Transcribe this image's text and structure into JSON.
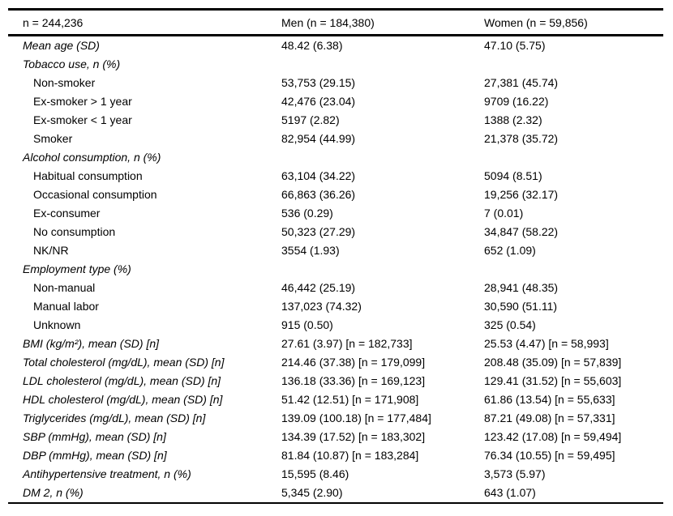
{
  "page": {
    "background_color": "#ffffff",
    "text_color": "#000000",
    "rule_color": "#000000"
  },
  "table": {
    "columns": [
      "n = 244,236",
      "Men (n = 184,380)",
      "Women (n = 59,856)"
    ],
    "rows": [
      {
        "label": "Mean age (SD)",
        "variant": "category",
        "men": "48.42 (6.38)",
        "women": "47.10 (5.75)"
      },
      {
        "label": "Tobacco use, n (%)",
        "variant": "category",
        "men": "",
        "women": ""
      },
      {
        "label": "Non-smoker",
        "variant": "sub",
        "men": "53,753 (29.15)",
        "women": "27,381 (45.74)"
      },
      {
        "label": "Ex-smoker > 1 year",
        "variant": "sub",
        "men": "42,476 (23.04)",
        "women": "9709 (16.22)"
      },
      {
        "label": "Ex-smoker < 1 year",
        "variant": "sub",
        "men": "5197 (2.82)",
        "women": "1388 (2.32)"
      },
      {
        "label": "Smoker",
        "variant": "sub",
        "men": "82,954 (44.99)",
        "women": "21,378 (35.72)"
      },
      {
        "label": "Alcohol consumption, n (%)",
        "variant": "category",
        "men": "",
        "women": ""
      },
      {
        "label": "Habitual consumption",
        "variant": "sub",
        "men": "63,104 (34.22)",
        "women": "5094 (8.51)"
      },
      {
        "label": "Occasional consumption",
        "variant": "sub",
        "men": "66,863 (36.26)",
        "women": "19,256 (32.17)"
      },
      {
        "label": "Ex-consumer",
        "variant": "sub",
        "men": "536 (0.29)",
        "women": "7 (0.01)"
      },
      {
        "label": "No consumption",
        "variant": "sub",
        "men": "50,323 (27.29)",
        "women": "34,847 (58.22)"
      },
      {
        "label": "NK/NR",
        "variant": "sub",
        "men": "3554 (1.93)",
        "women": "652 (1.09)"
      },
      {
        "label": "Employment type (%)",
        "variant": "category",
        "men": "",
        "women": ""
      },
      {
        "label": "Non-manual",
        "variant": "sub",
        "men": "46,442 (25.19)",
        "women": "28,941 (48.35)"
      },
      {
        "label": "Manual labor",
        "variant": "sub",
        "men": "137,023 (74.32)",
        "women": "30,590 (51.11)"
      },
      {
        "label": "Unknown",
        "variant": "sub",
        "men": "915 (0.50)",
        "women": "325 (0.54)"
      },
      {
        "label": "BMI (kg/m²), mean (SD) [n]",
        "variant": "category",
        "men": "27.61 (3.97) [n = 182,733]",
        "women": "25.53 (4.47) [n = 58,993]"
      },
      {
        "label": "Total cholesterol (mg/dL), mean (SD) [n]",
        "variant": "category",
        "men": "214.46 (37.38) [n = 179,099]",
        "women": "208.48 (35.09) [n = 57,839]"
      },
      {
        "label": "LDL cholesterol (mg/dL), mean (SD) [n]",
        "variant": "category",
        "men": "136.18 (33.36) [n = 169,123]",
        "women": "129.41 (31.52) [n = 55,603]"
      },
      {
        "label": "HDL cholesterol (mg/dL), mean (SD) [n]",
        "variant": "category",
        "men": "51.42 (12.51) [n = 171,908]",
        "women": "61.86 (13.54) [n = 55,633]"
      },
      {
        "label": "Triglycerides (mg/dL), mean (SD) [n]",
        "variant": "category",
        "men": "139.09 (100.18) [n = 177,484]",
        "women": "87.21 (49.08) [n = 57,331]"
      },
      {
        "label": "SBP (mmHg), mean (SD) [n]",
        "variant": "category",
        "men": "134.39 (17.52) [n = 183,302]",
        "women": "123.42 (17.08) [n = 59,494]"
      },
      {
        "label": "DBP (mmHg), mean (SD) [n]",
        "variant": "category",
        "men": "81.84 (10.87) [n = 183,284]",
        "women": "76.34 (10.55) [n = 59,495]"
      },
      {
        "label": "Antihypertensive treatment, n (%)",
        "variant": "category",
        "men": "15,595 (8.46)",
        "women": "3,573 (5.97)"
      },
      {
        "label": "DM 2, n (%)",
        "variant": "category",
        "men": "5,345 (2.90)",
        "women": "643 (1.07)"
      }
    ]
  }
}
